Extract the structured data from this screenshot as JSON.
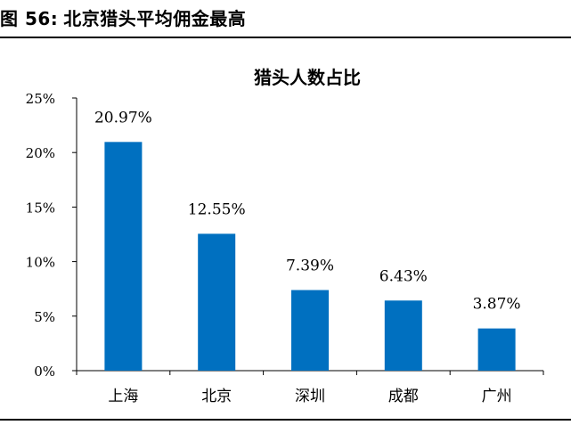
{
  "figure": {
    "number_label": "图 56:",
    "title": "北京猎头平均佣金最高"
  },
  "chart_data": {
    "type": "bar",
    "title": "猎头人数占比",
    "categories": [
      "上海",
      "北京",
      "深圳",
      "成都",
      "广州"
    ],
    "values": [
      20.97,
      12.55,
      7.39,
      6.43,
      3.87
    ],
    "data_labels": [
      "20.97%",
      "12.55%",
      "7.39%",
      "6.43%",
      "3.87%"
    ],
    "xlabel": "",
    "ylabel": "",
    "ylim": [
      0,
      25
    ],
    "yticks": [
      0,
      5,
      10,
      15,
      20,
      25
    ],
    "ytick_labels": [
      "0%",
      "5%",
      "10%",
      "15%",
      "20%",
      "25%"
    ],
    "grid": false,
    "legend": "none",
    "bar_color": "#0070C0"
  }
}
